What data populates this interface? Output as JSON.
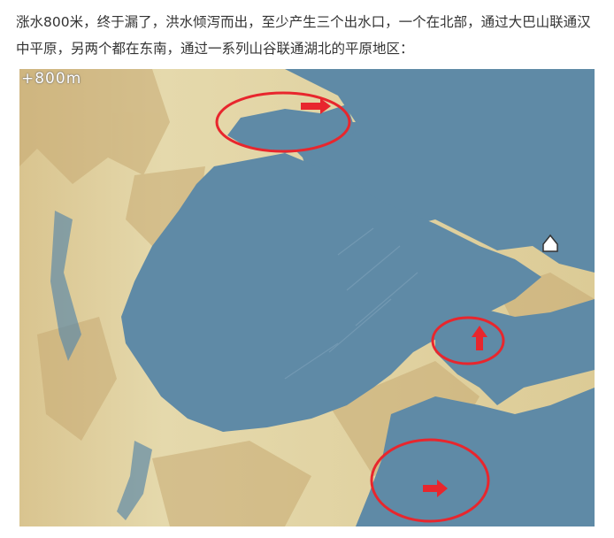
{
  "article": {
    "caption": "涨水800米，终于漏了，洪水倾泻而出，至少产生三个出水口，一个在北部，通过大巴山联通汉中平原，另两个都在东南，通过一系列山谷联通湖北的平原地区："
  },
  "map": {
    "elevation_label": "+800m",
    "colors": {
      "water": "#5f8aa6",
      "land_low": "#e3d7a8",
      "land_mid": "#d2b77e",
      "land_high": "#bfa06a",
      "marker_ring": "#e8262d",
      "arrow": "#e8262d"
    },
    "markers": [
      {
        "name": "north-outlet",
        "arrow": "right"
      },
      {
        "name": "southeast-outlet-upper",
        "arrow": "up"
      },
      {
        "name": "southeast-outlet-lower",
        "arrow": "right"
      }
    ],
    "icons": [
      "house-icon"
    ]
  }
}
